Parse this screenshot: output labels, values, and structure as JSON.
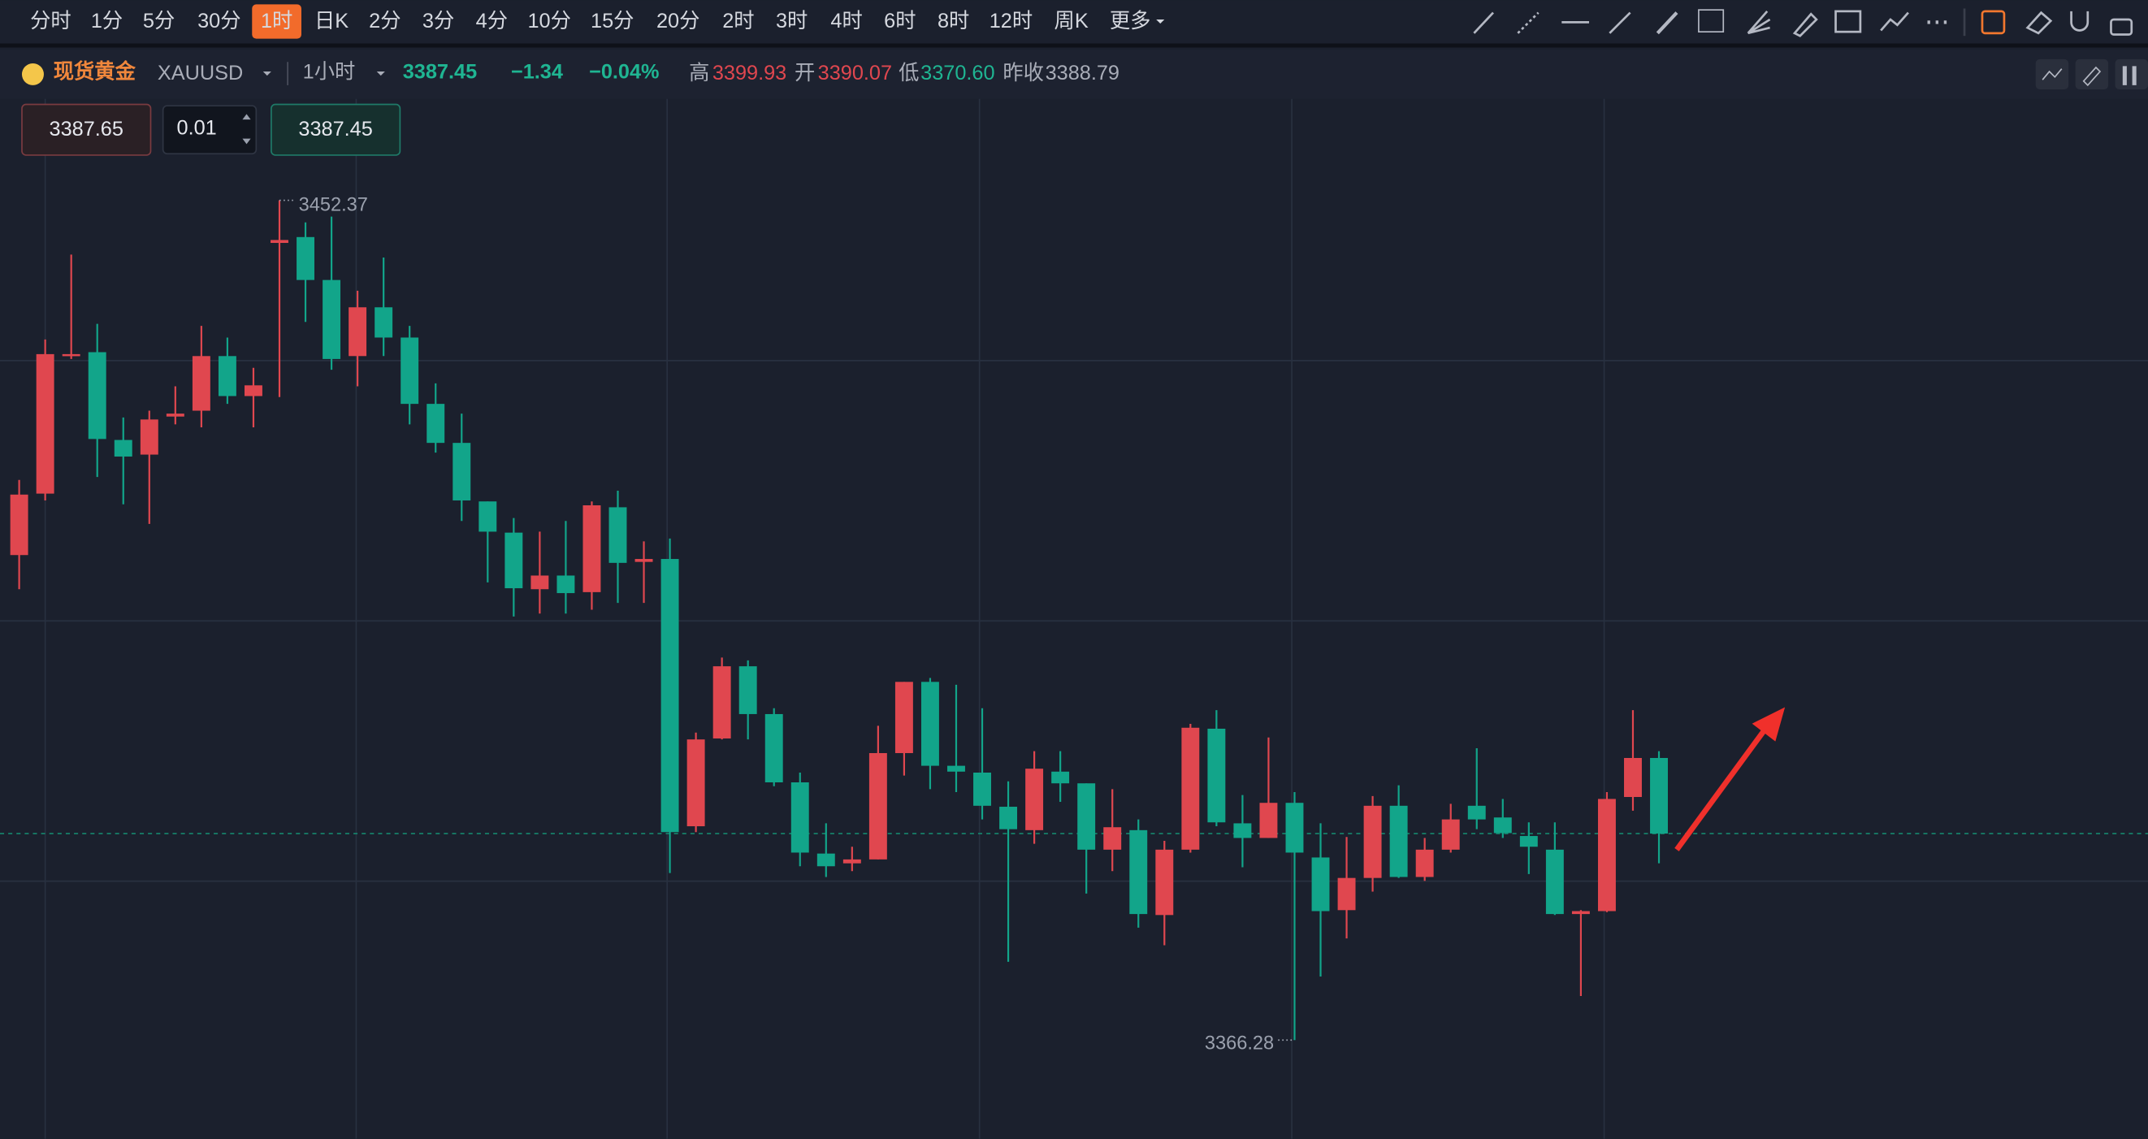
{
  "toolbar": {
    "timeframes": [
      "分时",
      "1分",
      "5分",
      "30分",
      "1时",
      "日K",
      "2分",
      "3分",
      "4分",
      "10分",
      "15分",
      "20分",
      "2时",
      "3时",
      "4时",
      "6时",
      "8时",
      "12时",
      "周K",
      "更多"
    ],
    "active_index": 4
  },
  "quote": {
    "name": "现货黄金",
    "symbol": "XAUUSD",
    "interval": "1小时",
    "last": "3387.45",
    "change": "−1.34",
    "change_pct": "−0.04%",
    "high_label": "高",
    "high": "3399.93",
    "open_label": "开",
    "open": "3390.07",
    "low_label": "低",
    "low": "3370.60",
    "prev_close_label": "昨收",
    "prev_close": "3388.79"
  },
  "trade": {
    "sell": "3387.65",
    "lots": "0.01",
    "buy": "3387.45"
  },
  "chart_data": {
    "type": "candlestick",
    "ylim": [
      3356.17,
      3462.76
    ],
    "up_color": "#e0474f",
    "down_color": "#12a58a",
    "open": [
      3416.0,
      3422.3,
      3436.4,
      3436.8,
      3427.8,
      3426.3,
      3430.2,
      3430.8,
      3436.4,
      3432.3,
      3448.0,
      3448.6,
      3444.2,
      3436.4,
      3441.4,
      3438.3,
      3431.5,
      3427.5,
      3421.5,
      3418.3,
      3412.5,
      3413.9,
      3412.2,
      3420.9,
      3415.3,
      3415.6,
      3388.2,
      3397.2,
      3404.6,
      3399.7,
      3392.7,
      3385.4,
      3384.4,
      3384.8,
      3395.7,
      3403.0,
      3394.4,
      3393.7,
      3390.2,
      3387.8,
      3393.8,
      3392.6,
      3385.8,
      3387.8,
      3379.1,
      3385.8,
      3398.2,
      3388.5,
      3387.0,
      3390.6,
      3385.0,
      3379.6,
      3382.9,
      3390.3,
      3383.0,
      3385.8,
      3390.3,
      3389.1,
      3387.2,
      3385.8,
      3379.2,
      3379.5,
      3391.2,
      3395.2
    ],
    "high": [
      3423.7,
      3438.1,
      3446.8,
      3439.7,
      3430.1,
      3430.8,
      3433.3,
      3439.5,
      3438.3,
      3435.2,
      3452.37,
      3450.1,
      3450.7,
      3443.1,
      3446.5,
      3439.5,
      3433.6,
      3430.5,
      3421.5,
      3419.8,
      3418.4,
      3419.5,
      3421.5,
      3422.6,
      3417.4,
      3417.7,
      3397.8,
      3405.5,
      3405.2,
      3400.3,
      3393.7,
      3388.5,
      3386.1,
      3398.5,
      3403.0,
      3403.4,
      3402.7,
      3400.3,
      3392.8,
      3395.9,
      3395.9,
      3392.6,
      3392.0,
      3388.9,
      3386.7,
      3398.7,
      3400.1,
      3391.4,
      3397.3,
      3391.7,
      3388.5,
      3387.1,
      3391.3,
      3392.4,
      3387.0,
      3390.5,
      3396.2,
      3391.0,
      3388.6,
      3388.6,
      3379.6,
      3391.7,
      3400.1,
      3395.9
    ],
    "low": [
      3412.5,
      3421.6,
      3436.1,
      3424.0,
      3421.2,
      3419.2,
      3429.4,
      3429.1,
      3431.5,
      3429.1,
      3432.2,
      3439.9,
      3435.0,
      3433.3,
      3436.4,
      3429.4,
      3426.5,
      3419.5,
      3413.2,
      3409.7,
      3410.0,
      3410.0,
      3410.4,
      3411.1,
      3411.1,
      3383.4,
      3387.6,
      3397.1,
      3397.1,
      3392.3,
      3384.1,
      3383.0,
      3383.6,
      3384.8,
      3393.4,
      3392.0,
      3391.7,
      3388.9,
      3374.3,
      3386.4,
      3390.7,
      3381.3,
      3383.6,
      3377.8,
      3376.0,
      3385.5,
      3388.2,
      3384.0,
      3387.0,
      3366.28,
      3372.8,
      3376.7,
      3381.5,
      3382.9,
      3382.6,
      3385.5,
      3387.9,
      3387.0,
      3383.3,
      3379.1,
      3370.8,
      3379.4,
      3389.8,
      3384.4
    ],
    "close": [
      3422.2,
      3436.6,
      3436.6,
      3427.9,
      3426.1,
      3429.9,
      3430.5,
      3436.4,
      3432.3,
      3433.4,
      3448.3,
      3444.2,
      3436.1,
      3441.4,
      3438.3,
      3431.5,
      3427.5,
      3421.6,
      3418.4,
      3412.6,
      3413.9,
      3412.1,
      3421.1,
      3415.2,
      3415.6,
      3387.6,
      3397.1,
      3404.6,
      3399.7,
      3392.7,
      3385.5,
      3384.1,
      3384.8,
      3395.7,
      3403.0,
      3394.4,
      3393.8,
      3390.3,
      3387.9,
      3394.1,
      3392.6,
      3385.8,
      3388.1,
      3379.2,
      3385.8,
      3398.3,
      3388.6,
      3387.0,
      3390.6,
      3385.5,
      3379.5,
      3382.9,
      3390.3,
      3383.0,
      3385.8,
      3388.9,
      3388.9,
      3387.5,
      3386.1,
      3379.2,
      3379.5,
      3391.0,
      3395.2,
      3387.45
    ]
  }
}
